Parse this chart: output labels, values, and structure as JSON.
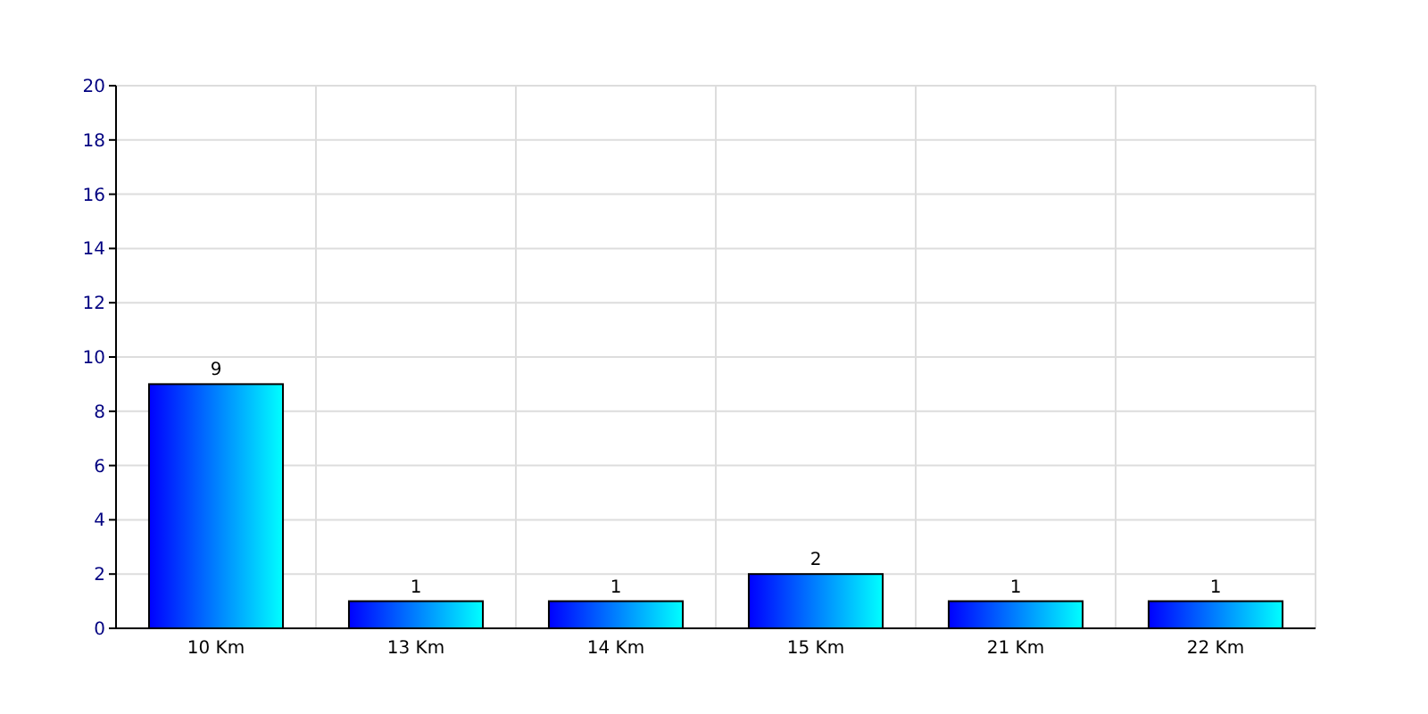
{
  "chart_data": {
    "type": "bar",
    "categories": [
      "10 Km",
      "13 Km",
      "14 Km",
      "15 Km",
      "21 Km",
      "22 Km"
    ],
    "values": [
      9,
      1,
      1,
      2,
      1,
      1
    ],
    "color": "#0000ff",
    "ylim": [
      0,
      20
    ],
    "yticks": [
      0,
      2,
      4,
      6,
      8,
      10,
      12,
      14,
      16,
      18,
      20
    ],
    "grid": true,
    "data_labels": true
  }
}
